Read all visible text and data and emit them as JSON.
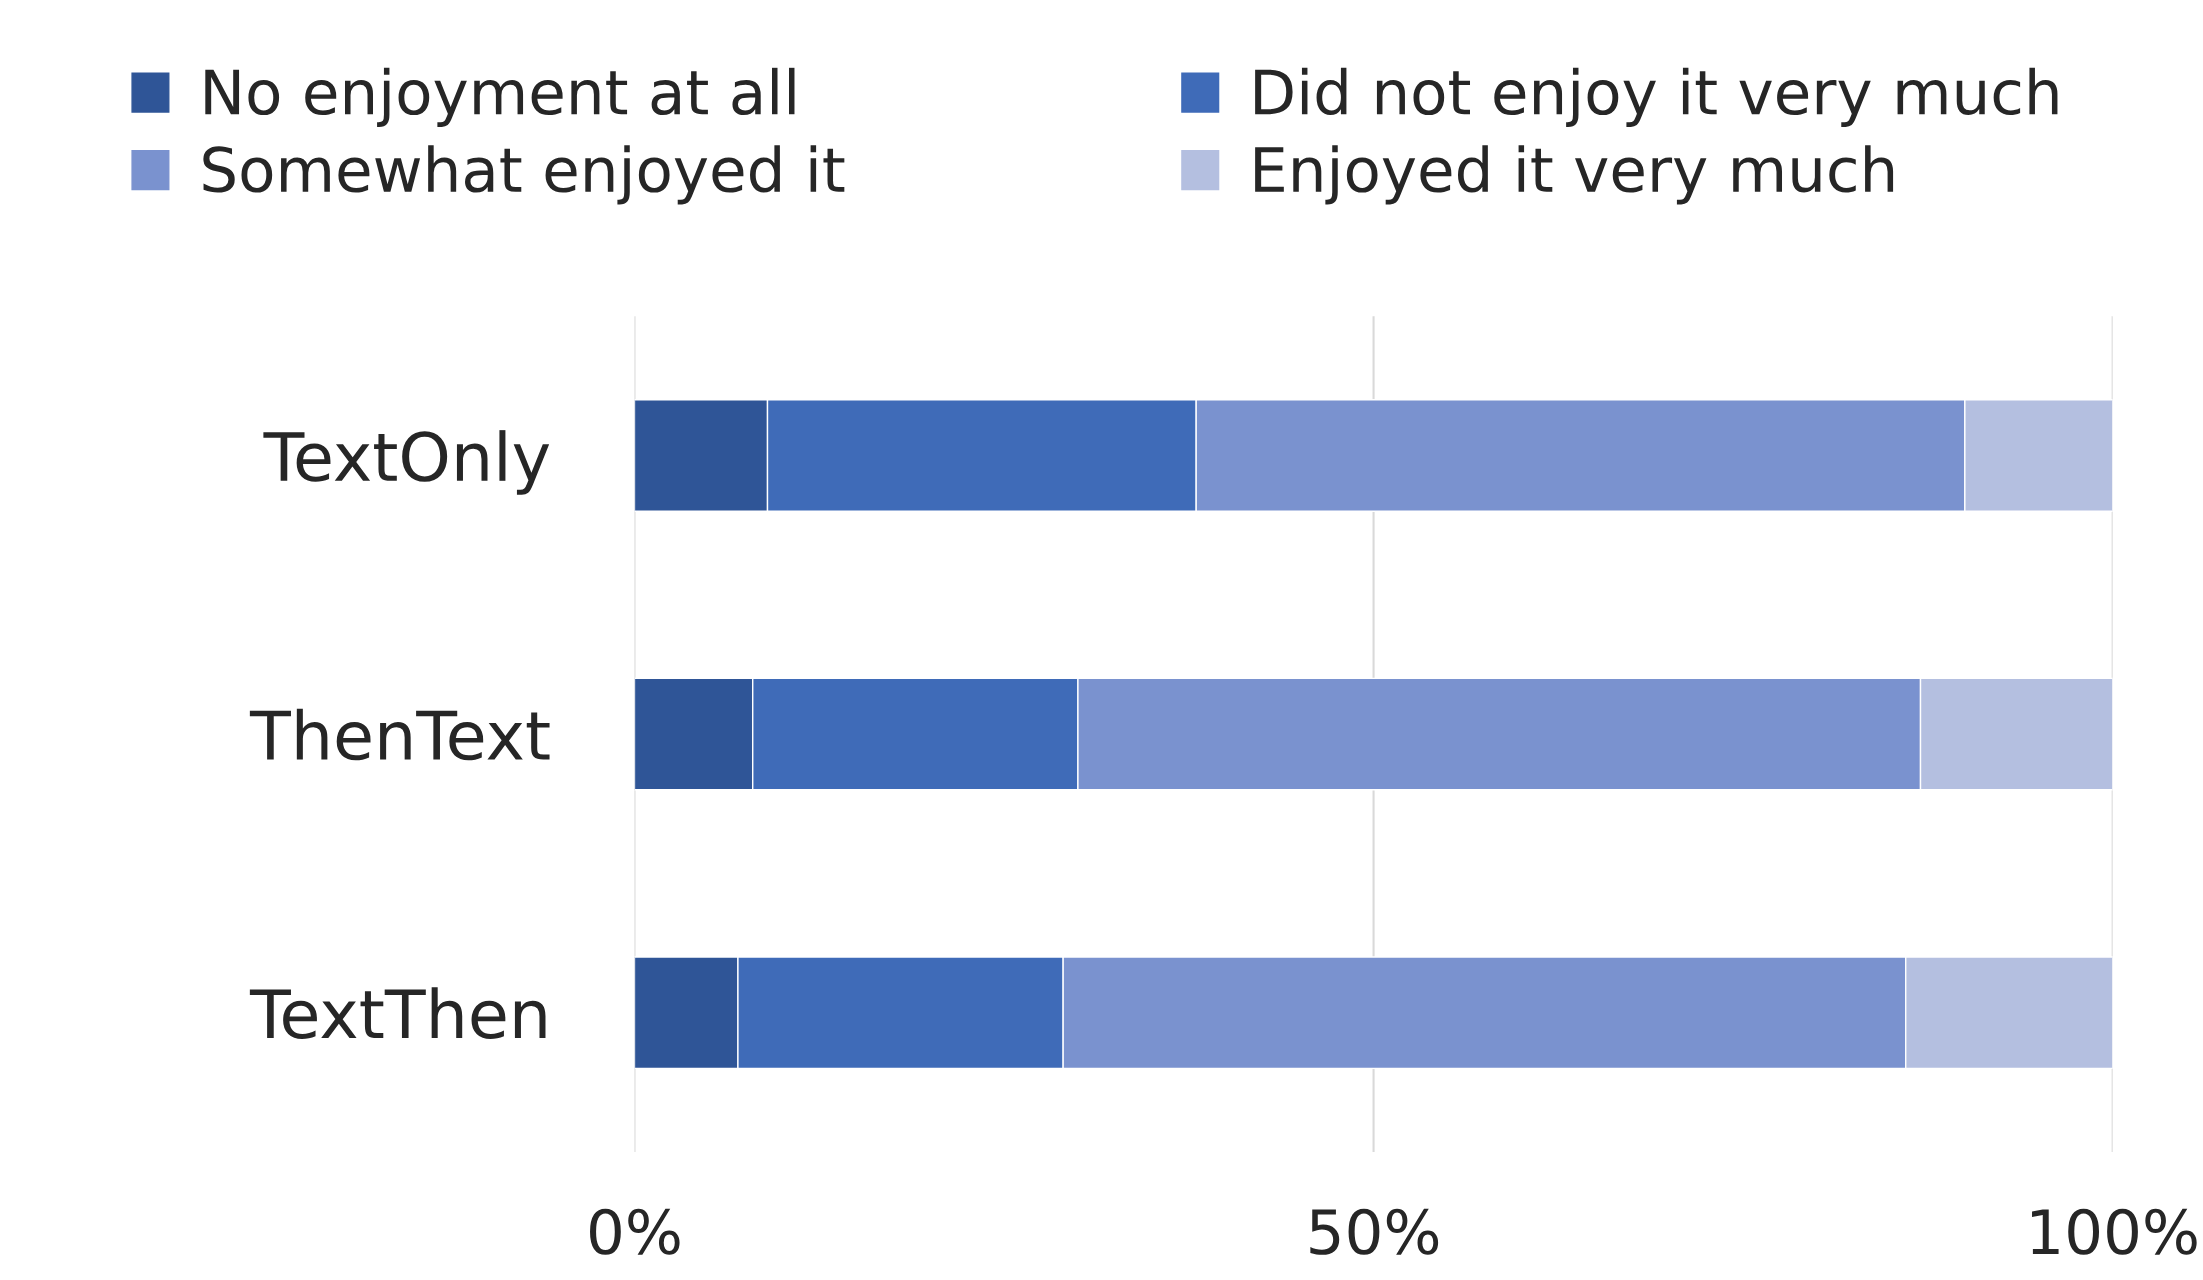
{
  "chart_data": {
    "type": "bar",
    "orientation": "horizontal",
    "stacked": true,
    "categories": [
      "TextOnly",
      "ThenText",
      "TextThen"
    ],
    "series": [
      {
        "name": "No enjoyment at all",
        "color": "#2f5597",
        "values": [
          9,
          8,
          7
        ]
      },
      {
        "name": "Did not enjoy it very much",
        "color": "#3f6bb8",
        "values": [
          29,
          22,
          22
        ]
      },
      {
        "name": "Somewhat enjoyed it",
        "color": "#7a92cf",
        "values": [
          52,
          57,
          57
        ]
      },
      {
        "name": "Enjoyed it very much",
        "color": "#b4bfe0",
        "values": [
          10,
          13,
          14
        ]
      }
    ],
    "xlim": [
      0,
      100
    ],
    "xticks": [
      {
        "value": 0,
        "label": "0%"
      },
      {
        "value": 50,
        "label": "50%"
      },
      {
        "value": 100,
        "label": "100%"
      }
    ],
    "grid": "x",
    "legend": "top"
  }
}
